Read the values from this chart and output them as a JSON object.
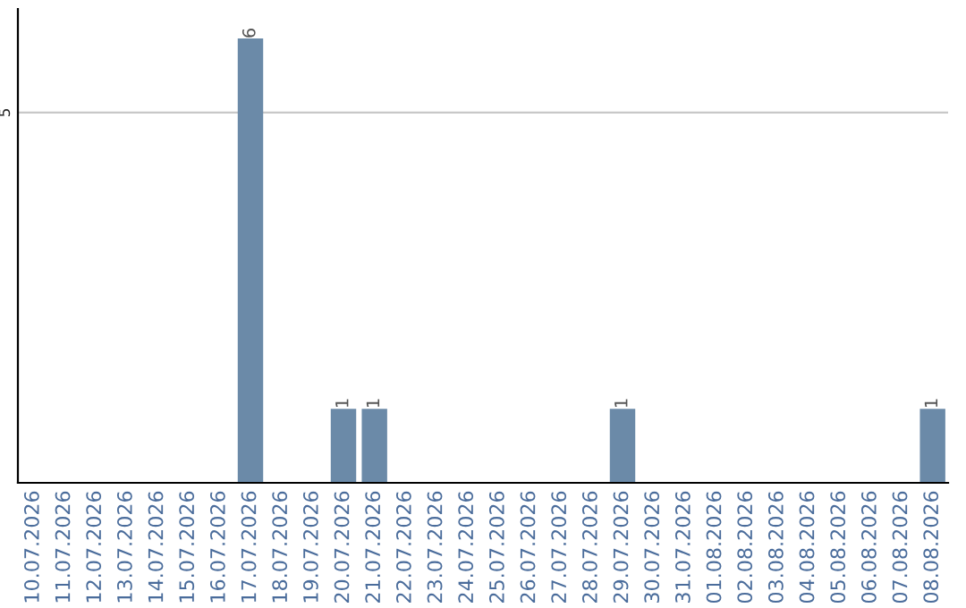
{
  "chart_data": {
    "type": "bar",
    "categories": [
      "10.07.2026",
      "11.07.2026",
      "12.07.2026",
      "13.07.2026",
      "14.07.2026",
      "15.07.2026",
      "16.07.2026",
      "17.07.2026",
      "18.07.2026",
      "19.07.2026",
      "20.07.2026",
      "21.07.2026",
      "22.07.2026",
      "23.07.2026",
      "24.07.2026",
      "25.07.2026",
      "26.07.2026",
      "27.07.2026",
      "28.07.2026",
      "29.07.2026",
      "30.07.2026",
      "31.07.2026",
      "01.08.2026",
      "02.08.2026",
      "03.08.2026",
      "04.08.2026",
      "05.08.2026",
      "06.08.2026",
      "07.08.2026",
      "08.08.2026"
    ],
    "values": [
      0,
      0,
      0,
      0,
      0,
      0,
      0,
      6,
      0,
      0,
      1,
      1,
      0,
      0,
      0,
      0,
      0,
      0,
      0,
      1,
      0,
      0,
      0,
      0,
      0,
      0,
      0,
      0,
      0,
      1
    ],
    "value_labels": [
      null,
      null,
      null,
      null,
      null,
      null,
      null,
      "6",
      null,
      null,
      "1",
      "1",
      null,
      null,
      null,
      null,
      null,
      null,
      null,
      "1",
      null,
      null,
      null,
      null,
      null,
      null,
      null,
      null,
      null,
      "1"
    ],
    "color": "#6b8aa8",
    "ylim": [
      0,
      6.4
    ],
    "yticks": [
      5
    ],
    "grid": "y",
    "legend": false
  }
}
